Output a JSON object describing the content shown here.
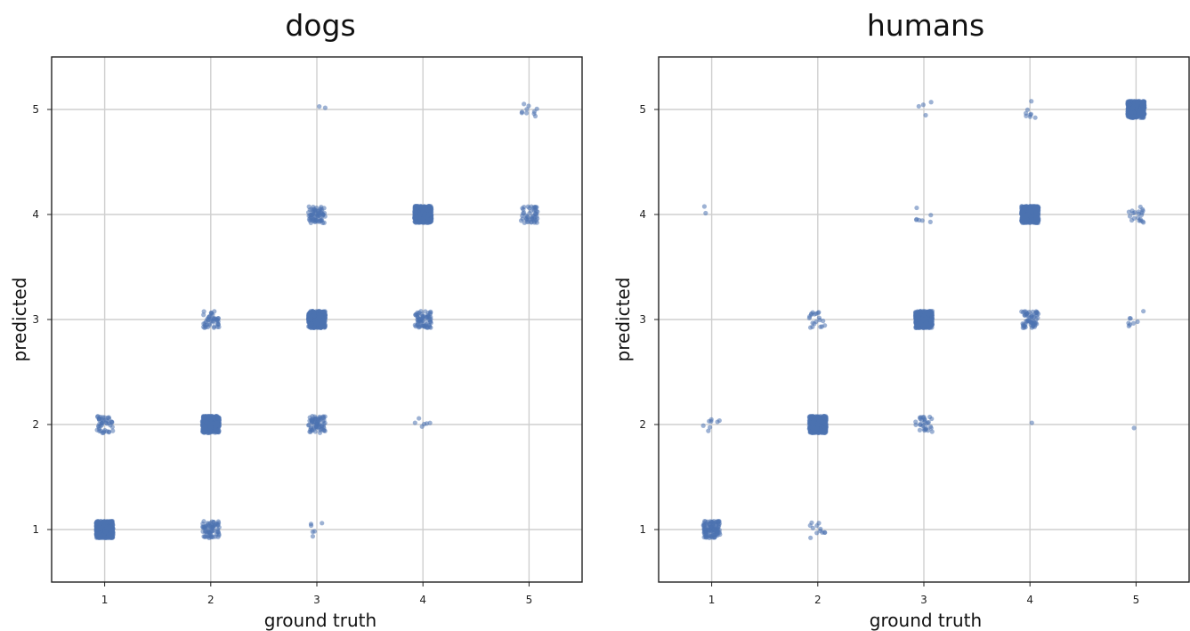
{
  "chart_data": [
    {
      "type": "scatter",
      "title": "dogs",
      "xlabel": "ground truth",
      "ylabel": "predicted",
      "xlim": [
        0.5,
        5.5
      ],
      "ylim": [
        0.5,
        5.5
      ],
      "xticks": [
        1,
        2,
        3,
        4,
        5
      ],
      "yticks": [
        1,
        2,
        3,
        4,
        5
      ],
      "grid": true,
      "jitter": 0.08,
      "point_color": "#4c72b0",
      "cells": [
        {
          "x": 1,
          "y": 1,
          "n": 500
        },
        {
          "x": 1,
          "y": 2,
          "n": 45
        },
        {
          "x": 2,
          "y": 1,
          "n": 70
        },
        {
          "x": 2,
          "y": 2,
          "n": 500
        },
        {
          "x": 2,
          "y": 3,
          "n": 45
        },
        {
          "x": 3,
          "y": 1,
          "n": 6
        },
        {
          "x": 3,
          "y": 2,
          "n": 70
        },
        {
          "x": 3,
          "y": 3,
          "n": 500
        },
        {
          "x": 3,
          "y": 4,
          "n": 70
        },
        {
          "x": 3,
          "y": 5,
          "n": 2
        },
        {
          "x": 4,
          "y": 2,
          "n": 6
        },
        {
          "x": 4,
          "y": 3,
          "n": 70
        },
        {
          "x": 4,
          "y": 4,
          "n": 500
        },
        {
          "x": 5,
          "y": 4,
          "n": 50
        },
        {
          "x": 5,
          "y": 5,
          "n": 10
        }
      ]
    },
    {
      "type": "scatter",
      "title": "humans",
      "xlabel": "ground truth",
      "ylabel": "predicted",
      "xlim": [
        0.5,
        5.5
      ],
      "ylim": [
        0.5,
        5.5
      ],
      "xticks": [
        1,
        2,
        3,
        4,
        5
      ],
      "yticks": [
        1,
        2,
        3,
        4,
        5
      ],
      "grid": true,
      "jitter": 0.08,
      "point_color": "#4c72b0",
      "cells": [
        {
          "x": 1,
          "y": 1,
          "n": 120
        },
        {
          "x": 1,
          "y": 2,
          "n": 8
        },
        {
          "x": 1,
          "y": 4,
          "n": 2
        },
        {
          "x": 2,
          "y": 1,
          "n": 12
        },
        {
          "x": 2,
          "y": 2,
          "n": 500
        },
        {
          "x": 2,
          "y": 3,
          "n": 20
        },
        {
          "x": 3,
          "y": 2,
          "n": 30
        },
        {
          "x": 3,
          "y": 3,
          "n": 500
        },
        {
          "x": 3,
          "y": 4,
          "n": 7
        },
        {
          "x": 3,
          "y": 5,
          "n": 4
        },
        {
          "x": 4,
          "y": 2,
          "n": 1
        },
        {
          "x": 4,
          "y": 3,
          "n": 60
        },
        {
          "x": 4,
          "y": 4,
          "n": 500
        },
        {
          "x": 4,
          "y": 5,
          "n": 8
        },
        {
          "x": 5,
          "y": 2,
          "n": 1
        },
        {
          "x": 5,
          "y": 3,
          "n": 8
        },
        {
          "x": 5,
          "y": 4,
          "n": 20
        },
        {
          "x": 5,
          "y": 5,
          "n": 500
        }
      ]
    }
  ]
}
